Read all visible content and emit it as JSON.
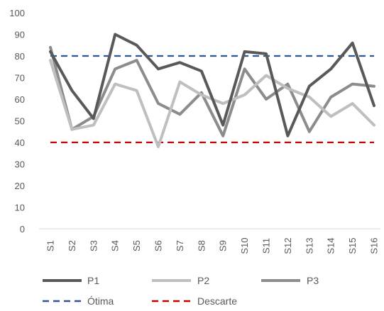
{
  "chart_data": {
    "type": "line",
    "categories": [
      "S1",
      "S2",
      "S3",
      "S4",
      "S5",
      "S6",
      "S7",
      "S8",
      "S9",
      "S10",
      "S11",
      "S12",
      "S13",
      "S14",
      "S15",
      "S16"
    ],
    "ylim": [
      0,
      100
    ],
    "yticks": [
      0,
      10,
      20,
      30,
      40,
      50,
      60,
      70,
      80,
      90,
      100
    ],
    "grid": false,
    "legend_position": "bottom",
    "series": [
      {
        "name": "P1",
        "color": "#595959",
        "style": "solid",
        "values": [
          82,
          64,
          51,
          90,
          85,
          74,
          77,
          73,
          48,
          82,
          81,
          43,
          66,
          74,
          86,
          57
        ]
      },
      {
        "name": "P2",
        "color": "#bfbfbf",
        "style": "solid",
        "values": [
          78,
          46,
          48,
          67,
          64,
          38,
          68,
          62,
          58,
          62,
          71,
          65,
          61,
          52,
          58,
          48
        ]
      },
      {
        "name": "P3",
        "color": "#8c8c8c",
        "style": "solid",
        "values": [
          84,
          46,
          52,
          74,
          78,
          58,
          53,
          63,
          43,
          74,
          60,
          67,
          45,
          61,
          67,
          66
        ]
      },
      {
        "name": "Ótima",
        "color": "#2e5597",
        "style": "dashed",
        "values": [
          80,
          80,
          80,
          80,
          80,
          80,
          80,
          80,
          80,
          80,
          80,
          80,
          80,
          80,
          80,
          80
        ]
      },
      {
        "name": "Descarte",
        "color": "#c00000",
        "style": "dashed",
        "values": [
          40,
          40,
          40,
          40,
          40,
          40,
          40,
          40,
          40,
          40,
          40,
          40,
          40,
          40,
          40,
          40
        ]
      }
    ]
  }
}
